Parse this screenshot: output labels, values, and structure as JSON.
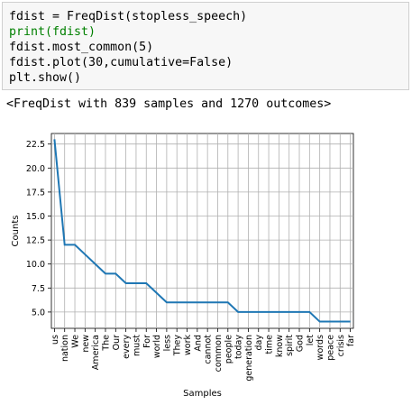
{
  "code": {
    "lines": [
      "fdist = FreqDist(stopless_speech)",
      "print(fdist)",
      "fdist.most_common(5)",
      "fdist.plot(30,cumulative=False)",
      "plt.show()"
    ]
  },
  "output": {
    "text": "<FreqDist with 839 samples and 1270 outcomes>"
  },
  "colors": {
    "line": "#1f77b4",
    "grid": "#b0b0b0"
  },
  "chart_data": {
    "type": "line",
    "xlabel": "Samples",
    "ylabel": "Counts",
    "grid": true,
    "ylim": [
      3.3,
      23.6
    ],
    "yticks": [
      5.0,
      7.5,
      10.0,
      12.5,
      15.0,
      17.5,
      20.0,
      22.5
    ],
    "ytick_labels": [
      "5.0",
      "7.5",
      "10.0",
      "12.5",
      "15.0",
      "17.5",
      "20.0",
      "22.5"
    ],
    "categories": [
      "us",
      "nation",
      "We",
      "new",
      "America",
      "The",
      "Our",
      "every",
      "must",
      "For",
      "world",
      "less",
      "They",
      "work",
      "And",
      "cannot",
      "common",
      "people",
      "today",
      "generation",
      "day",
      "time",
      "know",
      "spirit",
      "God",
      "let",
      "words",
      "peace",
      "crisis",
      "far"
    ],
    "values": [
      23,
      12,
      12,
      11,
      10,
      9,
      9,
      8,
      8,
      8,
      7,
      6,
      6,
      6,
      6,
      6,
      6,
      6,
      5,
      5,
      5,
      5,
      5,
      5,
      5,
      5,
      4,
      4,
      4,
      4
    ]
  }
}
